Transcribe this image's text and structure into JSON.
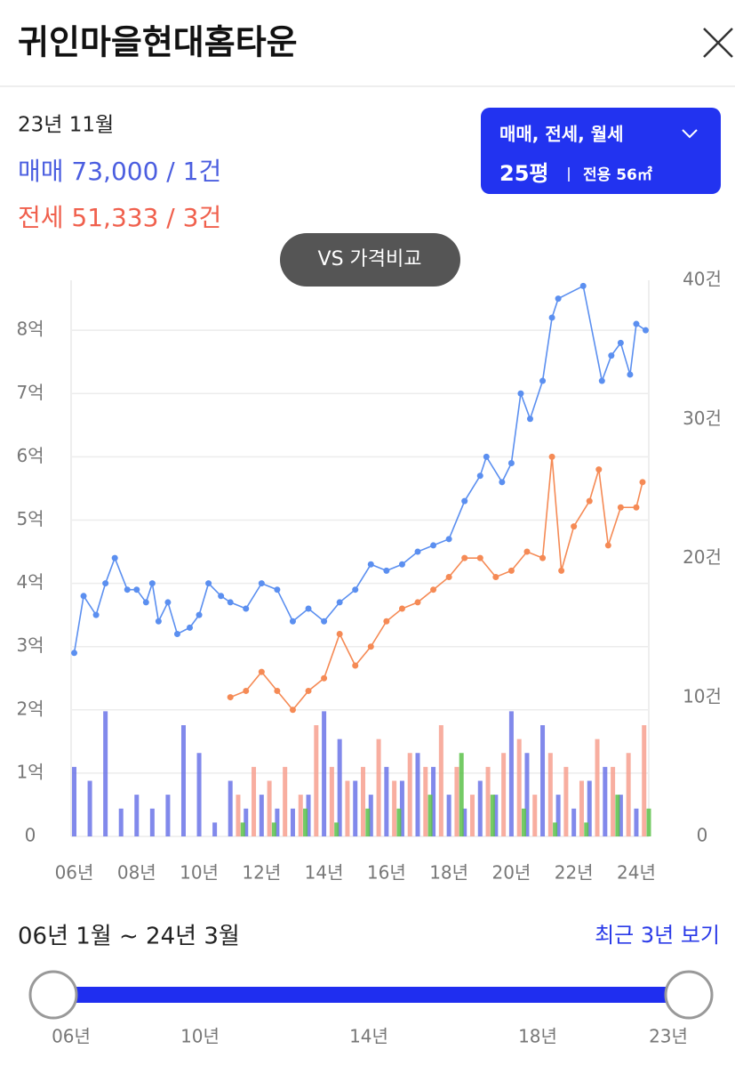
{
  "header": {
    "title": "귀인마을현대홈타운"
  },
  "summary": {
    "date": "23년 11월",
    "sale": "매매 73,000 / 1건",
    "jeonse": "전세 51,333 / 3건"
  },
  "filter": {
    "types": "매매, 전세, 월세",
    "size": "25평",
    "area": "전용 56㎡"
  },
  "compare_button": "VS 가격비교",
  "chart_data": {
    "type": "line",
    "xlim": [
      2005.9,
      2024.4
    ],
    "xticks": [
      {
        "value": 2006,
        "label": "06년"
      },
      {
        "value": 2008,
        "label": "08년"
      },
      {
        "value": 2010,
        "label": "10년"
      },
      {
        "value": 2012,
        "label": "12년"
      },
      {
        "value": 2014,
        "label": "14년"
      },
      {
        "value": 2016,
        "label": "16년"
      },
      {
        "value": 2018,
        "label": "18년"
      },
      {
        "value": 2020,
        "label": "20년"
      },
      {
        "value": 2022,
        "label": "22년"
      },
      {
        "value": 2024,
        "label": "24년"
      }
    ],
    "ylim": [
      0,
      8.79
    ],
    "yticks": [
      0,
      {
        "value": 1,
        "label": "1억"
      },
      {
        "value": 2,
        "label": "2억"
      },
      {
        "value": 3,
        "label": "3억"
      },
      {
        "value": 4,
        "label": "4억"
      },
      {
        "value": 5,
        "label": "5억"
      },
      {
        "value": 6,
        "label": "6억"
      },
      {
        "value": 7,
        "label": "7억"
      },
      {
        "value": 8,
        "label": "8억"
      }
    ],
    "y2lim": [
      0,
      40
    ],
    "y2ticks": [
      0,
      {
        "value": 10,
        "label": "10건"
      },
      {
        "value": 20,
        "label": "20건"
      },
      {
        "value": 30,
        "label": "30건"
      },
      {
        "value": 40,
        "label": "40건"
      }
    ],
    "grid": true,
    "series": [
      {
        "type": "bar",
        "axis": "y2",
        "color": "#6b74e8",
        "x": [
          2006,
          2006.5,
          2007,
          2007.5,
          2008,
          2008.5,
          2009,
          2009.5,
          2010,
          2010.5,
          2011,
          2011.5,
          2012,
          2012.5,
          2013,
          2013.5,
          2014,
          2014.5,
          2015,
          2015.5,
          2016,
          2016.5,
          2017,
          2017.5,
          2018,
          2018.5,
          2019,
          2019.5,
          2020,
          2020.5,
          2021,
          2021.5,
          2022,
          2022.5,
          2023,
          2023.5,
          2024
        ],
        "values": [
          5,
          4,
          9,
          2,
          3,
          2,
          3,
          8,
          6,
          1,
          4,
          2,
          3,
          2,
          2,
          3,
          9,
          7,
          4,
          3,
          5,
          4,
          6,
          5,
          3,
          2,
          4,
          3,
          9,
          6,
          8,
          3,
          2,
          4,
          5,
          3,
          2
        ]
      },
      {
        "type": "bar",
        "axis": "y2",
        "color": "#f7a08f",
        "x": [
          2011.25,
          2011.75,
          2012.25,
          2012.75,
          2013.25,
          2013.75,
          2014.25,
          2014.75,
          2015.25,
          2015.75,
          2016.25,
          2016.75,
          2017.25,
          2017.75,
          2018.25,
          2018.75,
          2019.25,
          2019.75,
          2020.25,
          2020.75,
          2021.25,
          2021.75,
          2022.25,
          2022.75,
          2023.25,
          2023.75,
          2024.25
        ],
        "values": [
          3,
          5,
          4,
          5,
          3,
          8,
          5,
          4,
          5,
          7,
          4,
          6,
          5,
          8,
          5,
          3,
          5,
          6,
          7,
          3,
          6,
          5,
          4,
          7,
          5,
          6,
          8
        ]
      },
      {
        "type": "bar",
        "axis": "y2",
        "color": "#5cc24a",
        "x": [
          2011.4,
          2012.4,
          2013.4,
          2014.4,
          2015.4,
          2016.4,
          2017.4,
          2018.4,
          2019.4,
          2020.4,
          2021.4,
          2022.4,
          2023.4,
          2024.4
        ],
        "values": [
          1,
          1,
          2,
          1,
          2,
          2,
          3,
          6,
          3,
          2,
          1,
          1,
          3,
          2
        ]
      },
      {
        "type": "line",
        "color": "#5b8ff0",
        "x": [
          2006.0,
          2006.3,
          2006.7,
          2007.0,
          2007.3,
          2007.7,
          2008.0,
          2008.3,
          2008.5,
          2008.7,
          2009.0,
          2009.3,
          2009.7,
          2010.0,
          2010.3,
          2010.7,
          2011.0,
          2011.5,
          2012.0,
          2012.5,
          2013.0,
          2013.5,
          2014.0,
          2014.5,
          2015.0,
          2015.5,
          2016.0,
          2016.5,
          2017.0,
          2017.5,
          2018.0,
          2018.5,
          2019.0,
          2019.2,
          2019.7,
          2020.0,
          2020.3,
          2020.6,
          2021.0,
          2021.3,
          2021.5,
          2022.3,
          2022.9,
          2023.2,
          2023.5,
          2023.8,
          2024.0,
          2024.3
        ],
        "values": [
          2.9,
          3.8,
          3.5,
          4.0,
          4.4,
          3.9,
          3.9,
          3.7,
          4.0,
          3.4,
          3.7,
          3.2,
          3.3,
          3.5,
          4.0,
          3.8,
          3.7,
          3.6,
          4.0,
          3.9,
          3.4,
          3.6,
          3.4,
          3.7,
          3.9,
          4.3,
          4.2,
          4.3,
          4.5,
          4.6,
          4.7,
          5.3,
          5.7,
          6.0,
          5.6,
          5.9,
          7.0,
          6.6,
          7.2,
          8.2,
          8.5,
          8.7,
          7.2,
          7.6,
          7.8,
          7.3,
          8.1,
          8.0
        ]
      },
      {
        "type": "line",
        "color": "#f58a55",
        "x": [
          2011.0,
          2011.5,
          2012.0,
          2012.5,
          2013.0,
          2013.5,
          2014.0,
          2014.5,
          2015.0,
          2015.5,
          2016.0,
          2016.5,
          2017.0,
          2017.5,
          2018.0,
          2018.5,
          2019.0,
          2019.5,
          2020.0,
          2020.5,
          2021.0,
          2021.3,
          2021.6,
          2022.0,
          2022.5,
          2022.8,
          2023.1,
          2023.5,
          2024.0,
          2024.2
        ],
        "values": [
          2.2,
          2.3,
          2.6,
          2.3,
          2.0,
          2.3,
          2.5,
          3.2,
          2.7,
          3.0,
          3.4,
          3.6,
          3.7,
          3.9,
          4.1,
          4.4,
          4.4,
          4.1,
          4.2,
          4.5,
          4.4,
          6.0,
          4.2,
          4.9,
          5.3,
          5.8,
          4.6,
          5.2,
          5.2,
          5.6
        ]
      }
    ]
  },
  "range": {
    "label": "06년 1월 ~ 24년 3월",
    "recent": "최근 3년 보기",
    "ticks": [
      "06년",
      "10년",
      "14년",
      "18년",
      "23년"
    ]
  }
}
